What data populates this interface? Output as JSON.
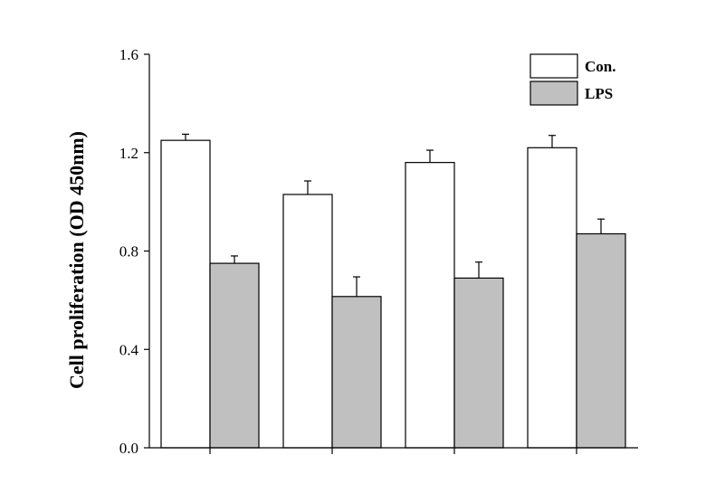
{
  "chart_data": {
    "type": "bar",
    "title": "",
    "xlabel": "",
    "ylabel": "Cell proliferation (OD 450nm)",
    "ylim": [
      0,
      1.6
    ],
    "yticks": [
      0.0,
      0.4,
      0.8,
      1.2,
      1.6
    ],
    "ytick_labels": [
      "0.0",
      "0.4",
      "0.8",
      "1.2",
      "1.6"
    ],
    "categories": [
      "",
      "",
      "",
      ""
    ],
    "series": [
      {
        "name": "Con.",
        "color": "#ffffff",
        "values": [
          1.25,
          1.03,
          1.16,
          1.22
        ],
        "errors": [
          0.025,
          0.055,
          0.05,
          0.05
        ]
      },
      {
        "name": "LPS",
        "color": "#c0c0c0",
        "values": [
          0.75,
          0.615,
          0.69,
          0.87
        ],
        "errors": [
          0.03,
          0.08,
          0.065,
          0.06
        ]
      }
    ],
    "legend_position": "top-right",
    "grid": false
  }
}
